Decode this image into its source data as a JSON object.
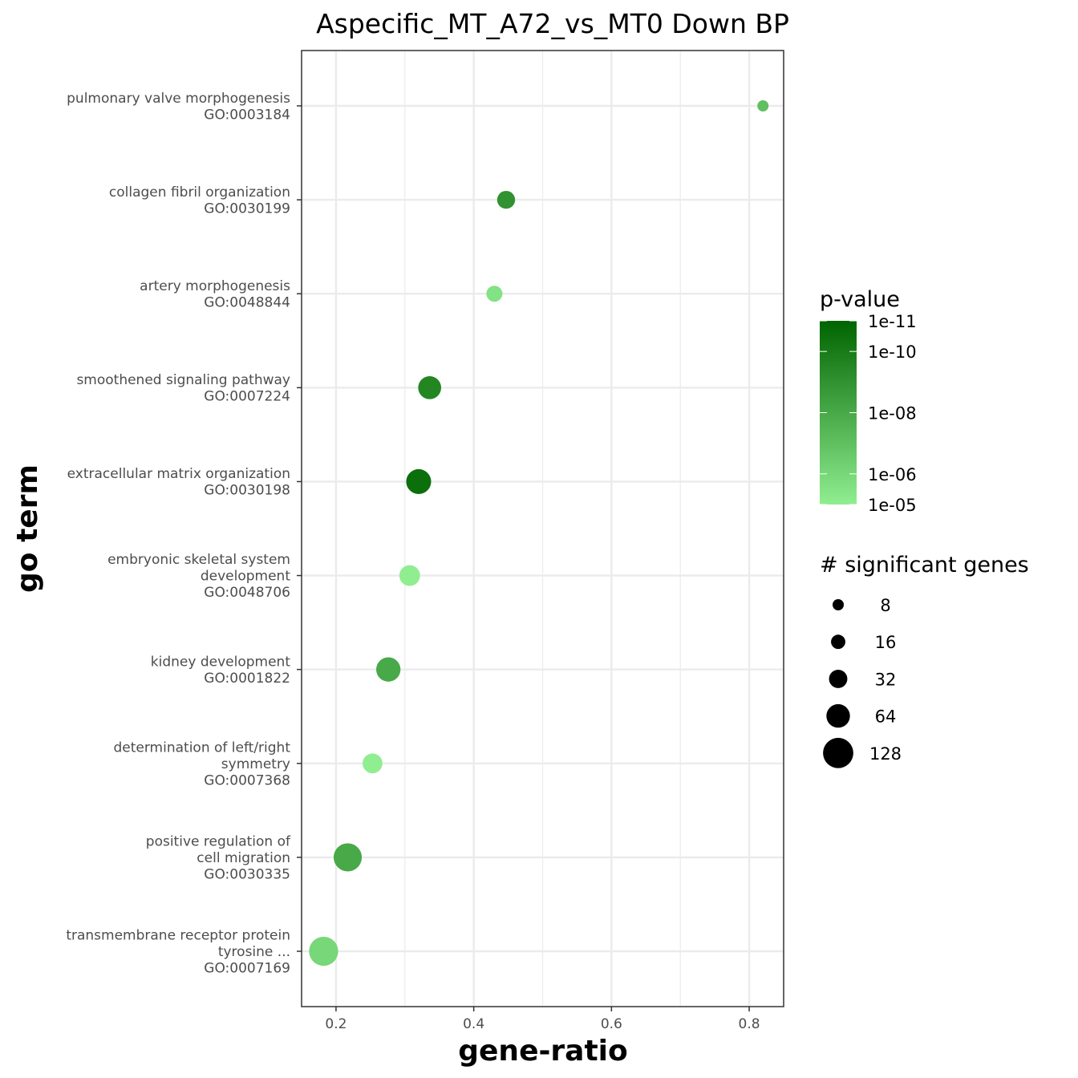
{
  "chart_data": {
    "type": "scatter",
    "title": "Aspecific_MT_A72_vs_MT0 Down BP",
    "xlabel": "gene-ratio",
    "ylabel": "go term",
    "xlim": [
      0.15,
      0.85
    ],
    "x_ticks": [
      "0.2",
      "0.4",
      "0.6",
      "0.8"
    ],
    "grid": true,
    "legend_position": "right",
    "categories": [
      [
        "pulmonary valve morphogenesis",
        "GO:0003184"
      ],
      [
        "collagen fibril organization",
        "GO:0030199"
      ],
      [
        "artery morphogenesis",
        "GO:0048844"
      ],
      [
        "smoothened signaling pathway",
        "GO:0007224"
      ],
      [
        "extracellular matrix organization",
        "GO:0030198"
      ],
      [
        "embryonic skeletal system",
        "development",
        "GO:0048706"
      ],
      [
        "kidney development",
        "GO:0001822"
      ],
      [
        "determination of left/right",
        "symmetry",
        "GO:0007368"
      ],
      [
        "positive regulation of",
        "cell migration",
        "GO:0030335"
      ],
      [
        "transmembrane receptor protein",
        "tyrosine ...",
        "GO:0007169"
      ]
    ],
    "points": [
      {
        "x": 0.82,
        "pvalue": 1e-07,
        "genes": 8
      },
      {
        "x": 0.447,
        "pvalue": 1e-09,
        "genes": 30
      },
      {
        "x": 0.43,
        "pvalue": 3e-06,
        "genes": 22
      },
      {
        "x": 0.336,
        "pvalue": 3e-10,
        "genes": 60
      },
      {
        "x": 0.32,
        "pvalue": 3e-11,
        "genes": 75
      },
      {
        "x": 0.307,
        "pvalue": 1e-05,
        "genes": 45
      },
      {
        "x": 0.276,
        "pvalue": 1e-08,
        "genes": 70
      },
      {
        "x": 0.253,
        "pvalue": 1e-05,
        "genes": 40
      },
      {
        "x": 0.217,
        "pvalue": 1e-08,
        "genes": 105
      },
      {
        "x": 0.182,
        "pvalue": 1e-06,
        "genes": 115
      }
    ],
    "color_legend": {
      "title": "p-value",
      "labels": [
        "1e-11",
        "1e-10",
        "1e-08",
        "1e-06",
        "1e-05"
      ],
      "colors": [
        "#006400",
        "#90ee90"
      ]
    },
    "size_legend": {
      "title": "# significant  genes",
      "labels": [
        "8",
        "16",
        "32",
        "64",
        "128"
      ]
    }
  }
}
